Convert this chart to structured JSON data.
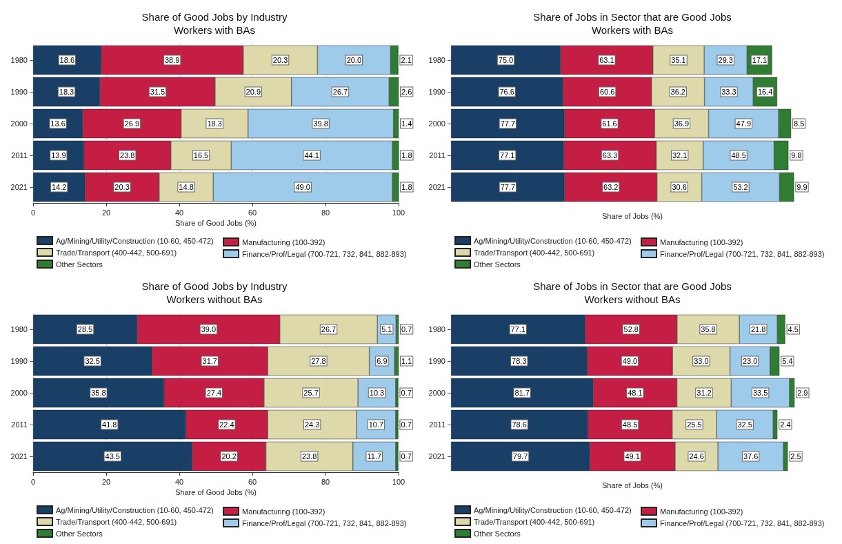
{
  "chart_data": [
    {
      "type": "bar",
      "orientation": "horizontal",
      "stacked": true,
      "title": "Share of Good Jobs by Industry",
      "subtitle": "Workers with BAs",
      "xlabel": "Share of Good Jobs (%)",
      "categories": [
        "1980",
        "1990",
        "2000",
        "2011",
        "2021"
      ],
      "xlim": [
        0,
        100
      ],
      "xticks": [
        0,
        20,
        40,
        60,
        80,
        100
      ],
      "grid": "x",
      "legend": "bottom",
      "data_labels": true,
      "series": [
        {
          "name": "Ag/Mining/Utility/Construction (10-60, 450-472)",
          "color": "#1a3f66",
          "values": [
            18.6,
            18.3,
            13.6,
            13.9,
            14.2
          ]
        },
        {
          "name": "Manufacturing (100-392)",
          "color": "#c41e45",
          "values": [
            38.9,
            31.5,
            26.9,
            23.8,
            20.3
          ]
        },
        {
          "name": "Trade/Transport (400-442, 500-691)",
          "color": "#ded9aa",
          "values": [
            20.3,
            20.9,
            18.3,
            16.5,
            14.8
          ]
        },
        {
          "name": "Finance/Prof/Legal (700-721, 732, 841, 882-893)",
          "color": "#9ecbea",
          "values": [
            20.0,
            26.7,
            39.8,
            44.1,
            49.0
          ],
          "value_labels": [
            "20.0",
            "26.7",
            "39.8",
            "44.1",
            "49.0"
          ]
        },
        {
          "name": "Other Sectors",
          "color": "#2e7d32",
          "values": [
            2.1,
            2.6,
            1.4,
            1.8,
            1.8
          ]
        }
      ]
    },
    {
      "type": "bar",
      "orientation": "horizontal",
      "stacked": true,
      "title": "Share of Jobs in Sector that are Good Jobs",
      "subtitle": "Workers with BAs",
      "xlabel": "Share of Jobs (%)",
      "categories": [
        "1980",
        "1990",
        "2000",
        "2011",
        "2021"
      ],
      "tick_labels": "y",
      "legend": "bottom",
      "data_labels": true,
      "series": [
        {
          "name": "Ag/Mining/Utility/Construction (10-60, 450-472)",
          "color": "#1a3f66",
          "values": [
            75.0,
            76.6,
            77.7,
            77.1,
            77.7
          ],
          "value_labels": [
            "75.0",
            "76.6",
            "77.7",
            "77.1",
            "77.7"
          ]
        },
        {
          "name": "Manufacturing (100-392)",
          "color": "#c41e45",
          "values": [
            63.1,
            60.6,
            61.6,
            63.3,
            63.2
          ]
        },
        {
          "name": "Trade/Transport (400-442, 500-691)",
          "color": "#ded9aa",
          "values": [
            35.1,
            36.2,
            36.9,
            32.1,
            30.6
          ]
        },
        {
          "name": "Finance/Prof/Legal (700-721, 732, 841, 882-893)",
          "color": "#9ecbea",
          "values": [
            29.3,
            33.3,
            47.9,
            48.5,
            53.2
          ]
        },
        {
          "name": "Other Sectors",
          "color": "#2e7d32",
          "values": [
            17.1,
            16.4,
            8.5,
            9.8,
            9.9
          ]
        }
      ]
    },
    {
      "type": "bar",
      "orientation": "horizontal",
      "stacked": true,
      "title": "Share of Good Jobs by Industry",
      "subtitle": "Workers without BAs",
      "xlabel": "Share of Good Jobs (%)",
      "categories": [
        "1980",
        "1990",
        "2000",
        "2011",
        "2021"
      ],
      "xlim": [
        0,
        100
      ],
      "xticks": [
        0,
        20,
        40,
        60,
        80,
        100
      ],
      "grid": "x",
      "legend": "bottom",
      "data_labels": true,
      "series": [
        {
          "name": "Ag/Mining/Utility/Construction (10-60, 450-472)",
          "color": "#1a3f66",
          "values": [
            28.5,
            32.5,
            35.8,
            41.8,
            43.5
          ]
        },
        {
          "name": "Manufacturing (100-392)",
          "color": "#c41e45",
          "values": [
            39.0,
            31.7,
            27.4,
            22.4,
            20.2
          ],
          "value_labels": [
            "39.0",
            "31.7",
            "27.4",
            "22.4",
            "20.2"
          ]
        },
        {
          "name": "Trade/Transport (400-442, 500-691)",
          "color": "#ded9aa",
          "values": [
            26.7,
            27.8,
            25.7,
            24.3,
            23.8
          ]
        },
        {
          "name": "Finance/Prof/Legal (700-721, 732, 841, 882-893)",
          "color": "#9ecbea",
          "values": [
            5.1,
            6.9,
            10.3,
            10.7,
            11.7
          ]
        },
        {
          "name": "Other Sectors",
          "color": "#2e7d32",
          "values": [
            0.7,
            1.1,
            0.7,
            0.7,
            0.7
          ]
        }
      ]
    },
    {
      "type": "bar",
      "orientation": "horizontal",
      "stacked": true,
      "title": "Share of Jobs in Sector that are Good Jobs",
      "subtitle": "Workers without BAs",
      "xlabel": "Share of Jobs (%)",
      "categories": [
        "1980",
        "1990",
        "2000",
        "2011",
        "2021"
      ],
      "tick_labels": "y",
      "legend": "bottom",
      "data_labels": true,
      "series": [
        {
          "name": "Ag/Mining/Utility/Construction (10-60, 450-472)",
          "color": "#1a3f66",
          "values": [
            77.1,
            78.3,
            81.7,
            78.6,
            79.7
          ]
        },
        {
          "name": "Manufacturing (100-392)",
          "color": "#c41e45",
          "values": [
            52.8,
            49.0,
            48.1,
            48.5,
            49.1
          ],
          "value_labels": [
            "52.8",
            "49.0",
            "48.1",
            "48.5",
            "49.1"
          ]
        },
        {
          "name": "Trade/Transport (400-442, 500-691)",
          "color": "#ded9aa",
          "values": [
            35.8,
            33.0,
            31.2,
            25.5,
            24.6
          ],
          "value_labels": [
            "35.8",
            "33.0",
            "31.2",
            "25.5",
            "24.6"
          ]
        },
        {
          "name": "Finance/Prof/Legal (700-721, 732, 841, 882-893)",
          "color": "#9ecbea",
          "values": [
            21.8,
            23.0,
            33.5,
            32.5,
            37.6
          ],
          "value_labels": [
            "21.8",
            "23.0",
            "33.5",
            "32.5",
            "37.6"
          ]
        },
        {
          "name": "Other Sectors",
          "color": "#2e7d32",
          "values": [
            4.5,
            5.4,
            2.9,
            2.4,
            2.5
          ]
        }
      ]
    }
  ]
}
